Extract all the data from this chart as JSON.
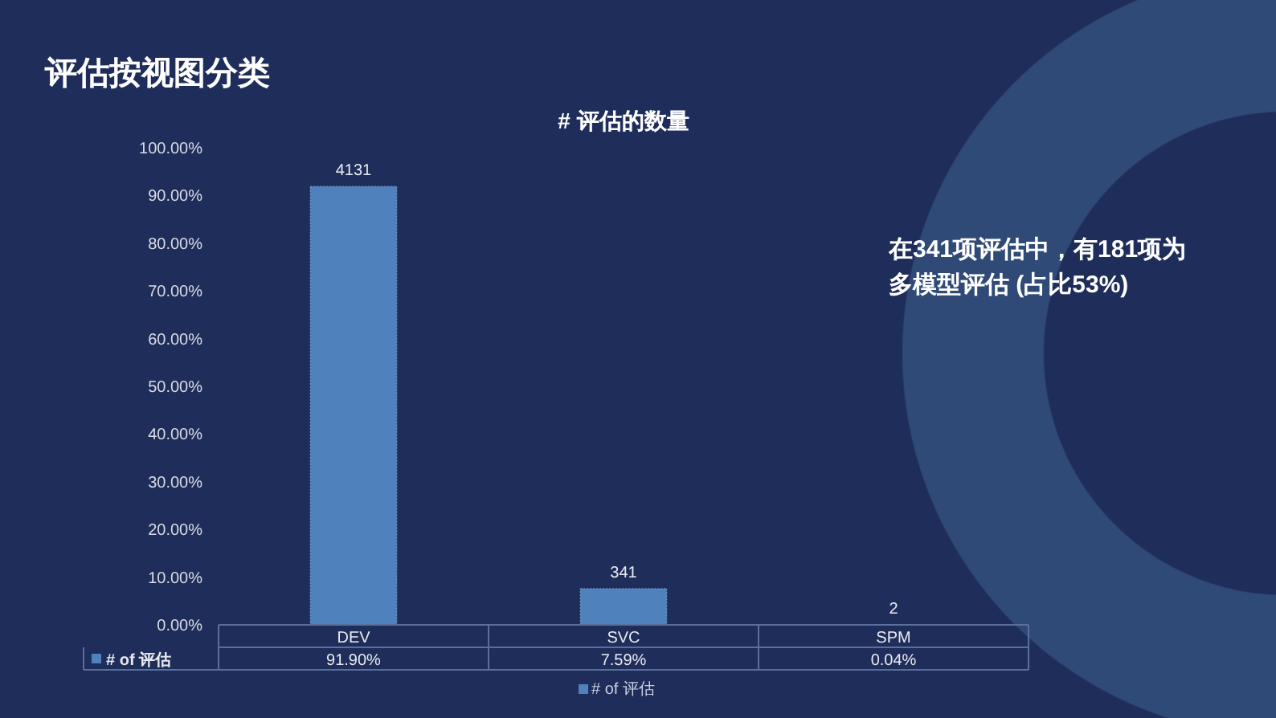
{
  "chart_data": {
    "type": "bar",
    "title": "评估按视图分类",
    "subtitle": "# 评估的数量",
    "categories": [
      "DEV",
      "SVC",
      "SPM"
    ],
    "series": [
      {
        "name": "# of 评估",
        "color": "#4f81bd",
        "values": [
          91.9,
          7.59,
          0.04
        ]
      }
    ],
    "ylim": [
      0,
      100
    ],
    "yticks": [
      {
        "value": 0,
        "label": "0.00%"
      },
      {
        "value": 10,
        "label": "10.00%"
      },
      {
        "value": 20,
        "label": "20.00%"
      },
      {
        "value": 30,
        "label": "30.00%"
      },
      {
        "value": 40,
        "label": "40.00%"
      },
      {
        "value": 50,
        "label": "50.00%"
      },
      {
        "value": 60,
        "label": "60.00%"
      },
      {
        "value": 70,
        "label": "70.00%"
      },
      {
        "value": 80,
        "label": "80.00%"
      },
      {
        "value": 90,
        "label": "90.00%"
      },
      {
        "value": 100,
        "label": "100.00%"
      }
    ],
    "value_labels": [
      "91.90%",
      "7.59%",
      "0.04%"
    ],
    "annotations": [
      {
        "text": "4131",
        "x": "DEV",
        "y": 91.9
      },
      {
        "text": "341",
        "x": "SVC",
        "y": 7.59
      },
      {
        "text": "2",
        "x": "SPM",
        "y": 0.04
      },
      "在341项评估中，有181项为多模型评估 (占比53%)"
    ],
    "legend": "bottom"
  }
}
